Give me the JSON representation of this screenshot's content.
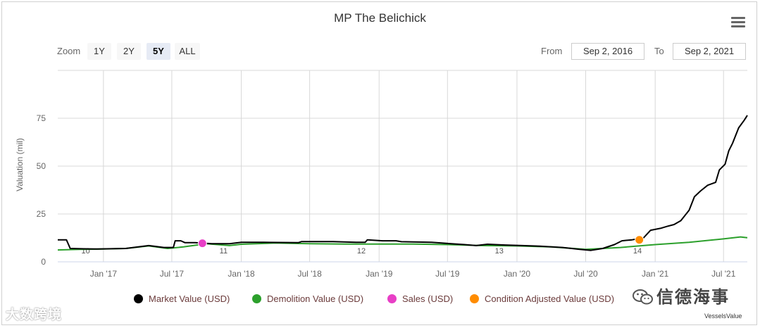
{
  "chart_data": {
    "type": "line",
    "title": "MP The Belichick",
    "ylabel": "Valuation (mil)",
    "xlabel": "",
    "ylim": [
      0,
      100
    ],
    "x_range": [
      "2016-09-02",
      "2021-09-02"
    ],
    "yticks": [
      0,
      25,
      50,
      75
    ],
    "grid": true,
    "legend_position": "bottom",
    "x_ticks": [
      {
        "date": "2017-01-01",
        "label": "Jan '17"
      },
      {
        "date": "2017-07-01",
        "label": "Jul '17"
      },
      {
        "date": "2018-01-01",
        "label": "Jan '18"
      },
      {
        "date": "2018-07-01",
        "label": "Jul '18"
      },
      {
        "date": "2019-01-01",
        "label": "Jan '19"
      },
      {
        "date": "2019-07-01",
        "label": "Jul '19"
      },
      {
        "date": "2020-01-01",
        "label": "Jan '20"
      },
      {
        "date": "2020-07-01",
        "label": "Jul '20"
      },
      {
        "date": "2021-01-01",
        "label": "Jan '21"
      },
      {
        "date": "2021-07-01",
        "label": "Jul '21"
      }
    ],
    "age_labels": [
      {
        "date": "2016-11-15",
        "label": "10"
      },
      {
        "date": "2017-11-15",
        "label": "11"
      },
      {
        "date": "2018-11-15",
        "label": "12"
      },
      {
        "date": "2019-11-15",
        "label": "13"
      },
      {
        "date": "2020-11-15",
        "label": "14"
      }
    ],
    "series": [
      {
        "name": "Market Value (USD)",
        "color": "#000000",
        "points": [
          [
            "2016-09-02",
            11.5
          ],
          [
            "2016-09-25",
            11.5
          ],
          [
            "2016-10-05",
            7
          ],
          [
            "2016-11-10",
            6.8
          ],
          [
            "2016-12-15",
            6.7
          ],
          [
            "2017-03-01",
            7
          ],
          [
            "2017-05-01",
            8.5
          ],
          [
            "2017-06-10",
            7.5
          ],
          [
            "2017-07-05",
            7.5
          ],
          [
            "2017-07-10",
            11
          ],
          [
            "2017-07-25",
            11
          ],
          [
            "2017-08-05",
            10
          ],
          [
            "2017-09-01",
            10
          ],
          [
            "2017-10-15",
            9.5
          ],
          [
            "2017-12-01",
            9.5
          ],
          [
            "2018-01-01",
            10.2
          ],
          [
            "2018-03-01",
            10.2
          ],
          [
            "2018-06-01",
            10
          ],
          [
            "2018-06-10",
            10.6
          ],
          [
            "2018-09-01",
            10.6
          ],
          [
            "2018-11-01",
            10.2
          ],
          [
            "2018-11-25",
            10.2
          ],
          [
            "2018-12-01",
            11.5
          ],
          [
            "2019-01-10",
            11
          ],
          [
            "2019-02-15",
            11
          ],
          [
            "2019-03-01",
            10.5
          ],
          [
            "2019-05-20",
            10.2
          ],
          [
            "2019-08-15",
            9
          ],
          [
            "2019-09-15",
            8.5
          ],
          [
            "2019-10-15",
            9.2
          ],
          [
            "2019-12-01",
            8.8
          ],
          [
            "2020-01-15",
            8.5
          ],
          [
            "2020-03-01",
            8.2
          ],
          [
            "2020-05-01",
            7.5
          ],
          [
            "2020-06-15",
            6.5
          ],
          [
            "2020-07-15",
            6
          ],
          [
            "2020-08-15",
            7
          ],
          [
            "2020-09-15",
            9
          ],
          [
            "2020-10-05",
            11
          ],
          [
            "2020-11-01",
            11.5
          ],
          [
            "2020-12-01",
            12.5
          ],
          [
            "2020-12-20",
            16.5
          ],
          [
            "2021-01-15",
            17.5
          ],
          [
            "2021-02-01",
            18.5
          ],
          [
            "2021-02-20",
            19.5
          ],
          [
            "2021-03-10",
            21.5
          ],
          [
            "2021-04-01",
            27
          ],
          [
            "2021-04-15",
            34
          ],
          [
            "2021-05-01",
            37
          ],
          [
            "2021-05-20",
            40
          ],
          [
            "2021-06-10",
            41.5
          ],
          [
            "2021-06-20",
            48
          ],
          [
            "2021-07-05",
            51
          ],
          [
            "2021-07-15",
            58
          ],
          [
            "2021-07-25",
            62
          ],
          [
            "2021-08-10",
            70
          ],
          [
            "2021-08-25",
            74
          ],
          [
            "2021-09-02",
            76.5
          ]
        ]
      },
      {
        "name": "Demolition Value (USD)",
        "color": "#2ca02c",
        "points": [
          [
            "2016-09-02",
            6.2
          ],
          [
            "2016-11-01",
            6.5
          ],
          [
            "2017-01-01",
            6.7
          ],
          [
            "2017-03-01",
            7
          ],
          [
            "2017-05-01",
            8.3
          ],
          [
            "2017-06-20",
            7
          ],
          [
            "2017-08-01",
            7.8
          ],
          [
            "2017-10-01",
            9.5
          ],
          [
            "2017-12-01",
            8.5
          ],
          [
            "2018-01-01",
            9.2
          ],
          [
            "2018-04-01",
            9.8
          ],
          [
            "2018-07-01",
            9.5
          ],
          [
            "2018-10-01",
            9.3
          ],
          [
            "2019-01-01",
            9.3
          ],
          [
            "2019-04-01",
            9.3
          ],
          [
            "2019-07-01",
            9
          ],
          [
            "2019-10-01",
            8.5
          ],
          [
            "2020-01-01",
            8.3
          ],
          [
            "2020-04-01",
            7.8
          ],
          [
            "2020-07-01",
            6.5
          ],
          [
            "2020-10-01",
            7.5
          ],
          [
            "2021-01-01",
            9
          ],
          [
            "2021-04-01",
            10.2
          ],
          [
            "2021-07-01",
            12
          ],
          [
            "2021-08-15",
            13
          ],
          [
            "2021-09-02",
            12.6
          ]
        ]
      }
    ],
    "markers": [
      {
        "series": "Sales (USD)",
        "color": "#e83fc6",
        "date": "2017-09-20",
        "value": 9.7
      },
      {
        "series": "Condition Adjusted Value (USD)",
        "color": "#ff8c00",
        "date": "2020-11-20",
        "value": 11.5
      }
    ]
  },
  "controls": {
    "zoom_label": "Zoom",
    "zoom_buttons": [
      "1Y",
      "2Y",
      "5Y",
      "ALL"
    ],
    "active_zoom": "5Y",
    "from_label": "From",
    "from_value": "Sep 2, 2016",
    "to_label": "To",
    "to_value": "Sep 2, 2021"
  },
  "legend": [
    {
      "label": "Market Value (USD)",
      "color": "#000000"
    },
    {
      "label": "Demolition Value (USD)",
      "color": "#2ca02c"
    },
    {
      "label": "Sales (USD)",
      "color": "#e83fc6"
    },
    {
      "label": "Condition Adjusted Value (USD)",
      "color": "#ff8c00"
    }
  ],
  "credits": "VesselsValue",
  "watermarks": {
    "left": "大数跨境",
    "right": "信德海事"
  }
}
